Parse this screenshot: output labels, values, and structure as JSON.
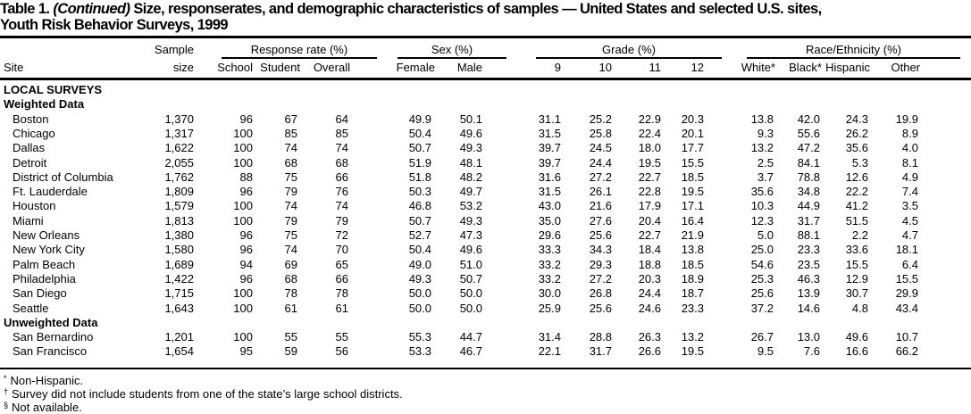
{
  "title": {
    "prefix": "Table 1.",
    "continued": "(Continued)",
    "text": "Size, responserates, and demographic characteristics of samples — United States and selected U.S. sites,",
    "line2": "Youth Risk Behavior Surveys, 1999"
  },
  "header": {
    "site": "Site",
    "sample_top": "Sample",
    "sample_bottom": "size",
    "groups": {
      "response": "Response rate (%)",
      "sex": "Sex (%)",
      "grade": "Grade (%)",
      "race": "Race/Ethnicity (%)"
    },
    "columns": [
      "School",
      "Student",
      "Overall",
      "Female",
      "Male",
      "9",
      "10",
      "11",
      "12",
      "White*",
      "Black*",
      "Hispanic",
      "Other"
    ]
  },
  "sections": [
    {
      "label": "LOCAL SURVEYS",
      "type": "heading"
    },
    {
      "label": "Weighted Data",
      "type": "subheading"
    },
    {
      "type": "row",
      "site": "Boston",
      "values": [
        "1,370",
        "96",
        "67",
        "64",
        "49.9",
        "50.1",
        "31.1",
        "25.2",
        "22.9",
        "20.3",
        "13.8",
        "42.0",
        "24.3",
        "19.9"
      ]
    },
    {
      "type": "row",
      "site": "Chicago",
      "values": [
        "1,317",
        "100",
        "85",
        "85",
        "50.4",
        "49.6",
        "31.5",
        "25.8",
        "22.4",
        "20.1",
        "9.3",
        "55.6",
        "26.2",
        "8.9"
      ]
    },
    {
      "type": "row",
      "site": "Dallas",
      "values": [
        "1,622",
        "100",
        "74",
        "74",
        "50.7",
        "49.3",
        "39.7",
        "24.5",
        "18.0",
        "17.7",
        "13.2",
        "47.2",
        "35.6",
        "4.0"
      ]
    },
    {
      "type": "row",
      "site": "Detroit",
      "values": [
        "2,055",
        "100",
        "68",
        "68",
        "51.9",
        "48.1",
        "39.7",
        "24.4",
        "19.5",
        "15.5",
        "2.5",
        "84.1",
        "5.3",
        "8.1"
      ]
    },
    {
      "type": "row",
      "site": "District of Columbia",
      "values": [
        "1,762",
        "88",
        "75",
        "66",
        "51.8",
        "48.2",
        "31.6",
        "27.2",
        "22.7",
        "18.5",
        "3.7",
        "78.8",
        "12.6",
        "4.9"
      ]
    },
    {
      "type": "row",
      "site": "Ft. Lauderdale",
      "values": [
        "1,809",
        "96",
        "79",
        "76",
        "50.3",
        "49.7",
        "31.5",
        "26.1",
        "22.8",
        "19.5",
        "35.6",
        "34.8",
        "22.2",
        "7.4"
      ]
    },
    {
      "type": "row",
      "site": "Houston",
      "values": [
        "1,579",
        "100",
        "74",
        "74",
        "46.8",
        "53.2",
        "43.0",
        "21.6",
        "17.9",
        "17.1",
        "10.3",
        "44.9",
        "41.2",
        "3.5"
      ]
    },
    {
      "type": "row",
      "site": "Miami",
      "values": [
        "1,813",
        "100",
        "79",
        "79",
        "50.7",
        "49.3",
        "35.0",
        "27.6",
        "20.4",
        "16.4",
        "12.3",
        "31.7",
        "51.5",
        "4.5"
      ]
    },
    {
      "type": "row",
      "site": "New Orleans",
      "values": [
        "1,380",
        "96",
        "75",
        "72",
        "52.7",
        "47.3",
        "29.6",
        "25.6",
        "22.7",
        "21.9",
        "5.0",
        "88.1",
        "2.2",
        "4.7"
      ]
    },
    {
      "type": "row",
      "site": "New York City",
      "values": [
        "1,580",
        "96",
        "74",
        "70",
        "50.4",
        "49.6",
        "33.3",
        "34.3",
        "18.4",
        "13.8",
        "25.0",
        "23.3",
        "33.6",
        "18.1"
      ]
    },
    {
      "type": "row",
      "site": "Palm Beach",
      "values": [
        "1,689",
        "94",
        "69",
        "65",
        "49.0",
        "51.0",
        "33.2",
        "29.3",
        "18.8",
        "18.5",
        "54.6",
        "23.5",
        "15.5",
        "6.4"
      ]
    },
    {
      "type": "row",
      "site": "Philadelphia",
      "values": [
        "1,422",
        "96",
        "68",
        "66",
        "49.3",
        "50.7",
        "33.2",
        "27.2",
        "20.3",
        "18.9",
        "25.3",
        "46.3",
        "12.9",
        "15.5"
      ]
    },
    {
      "type": "row",
      "site": "San Diego",
      "values": [
        "1,715",
        "100",
        "78",
        "78",
        "50.0",
        "50.0",
        "30.0",
        "26.8",
        "24.4",
        "18.7",
        "25.6",
        "13.9",
        "30.7",
        "29.9"
      ]
    },
    {
      "type": "row",
      "site": "Seattle",
      "values": [
        "1,643",
        "100",
        "61",
        "61",
        "50.0",
        "50.0",
        "25.9",
        "25.6",
        "24.6",
        "23.3",
        "37.2",
        "14.6",
        "4.8",
        "43.4"
      ]
    },
    {
      "label": "Unweighted Data",
      "type": "subheading"
    },
    {
      "type": "row",
      "site": "San Bernardino",
      "values": [
        "1,201",
        "100",
        "55",
        "55",
        "55.3",
        "44.7",
        "31.4",
        "28.8",
        "26.3",
        "13.2",
        "26.7",
        "13.0",
        "49.6",
        "10.7"
      ]
    },
    {
      "type": "row",
      "site": "San Francisco",
      "values": [
        "1,654",
        "95",
        "59",
        "56",
        "53.3",
        "46.7",
        "22.1",
        "31.7",
        "26.6",
        "19.5",
        "9.5",
        "7.6",
        "16.6",
        "66.2"
      ]
    }
  ],
  "footnotes": [
    {
      "mark": "*",
      "text": "Non-Hispanic."
    },
    {
      "mark": "†",
      "text": "Survey did not include students from one of the state’s large school districts."
    },
    {
      "mark": "§",
      "text": "Not available."
    }
  ]
}
